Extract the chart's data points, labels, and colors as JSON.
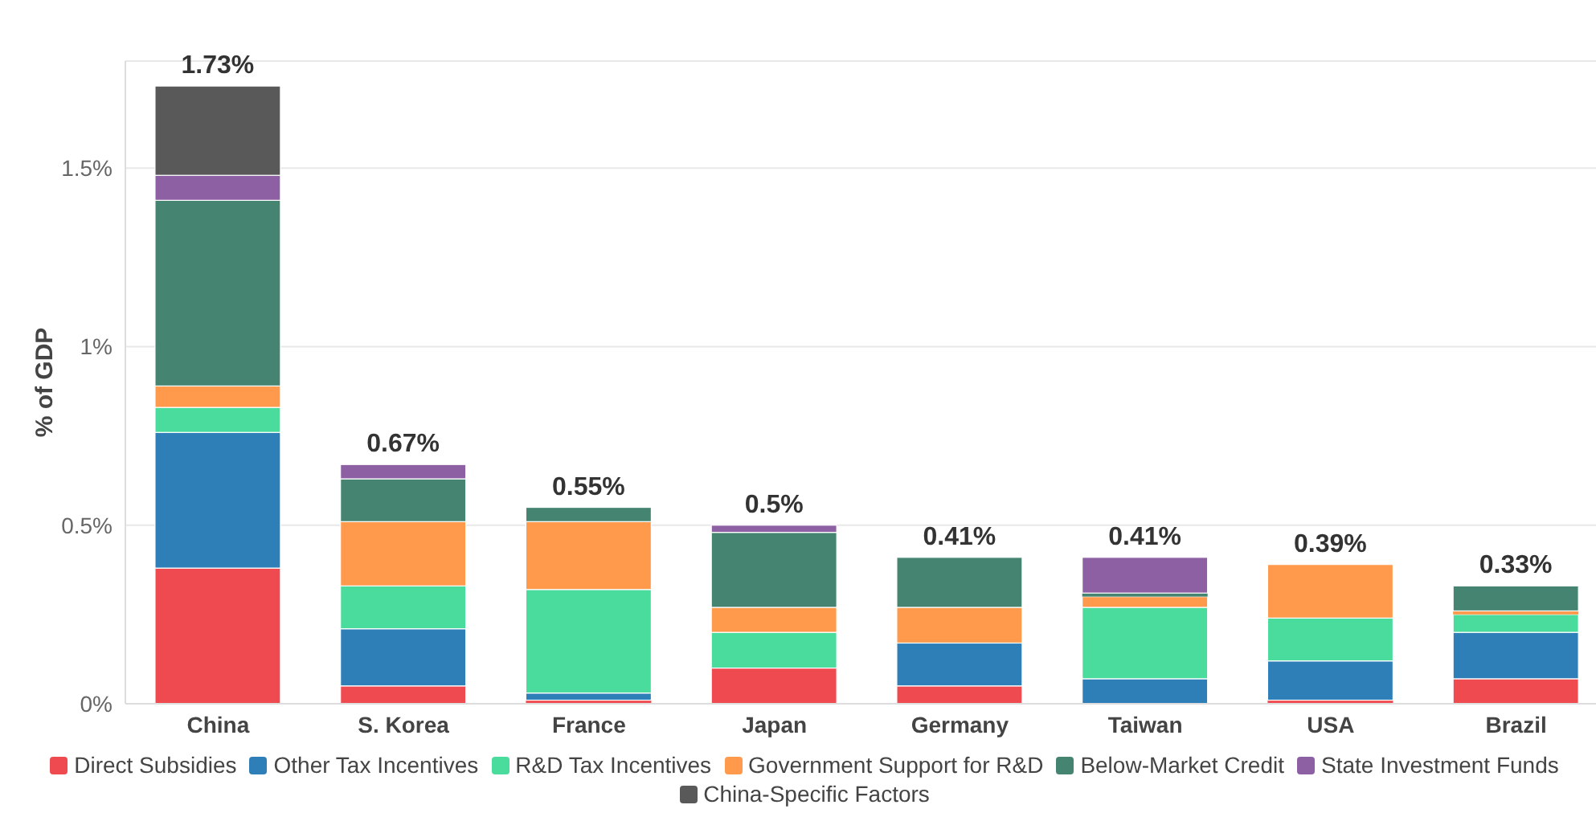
{
  "chart_data": {
    "type": "bar",
    "stacked": true,
    "ylabel": "% of GDP",
    "categories": [
      "China",
      "S. Korea",
      "France",
      "Japan",
      "Germany",
      "Taiwan",
      "USA",
      "Brazil"
    ],
    "series": [
      {
        "name": "Direct Subsidies",
        "color": "#ef4a50",
        "values": [
          0.38,
          0.05,
          0.01,
          0.1,
          0.05,
          null,
          0.01,
          0.07
        ]
      },
      {
        "name": "Other Tax Incentives",
        "color": "#2e7eb8",
        "values": [
          0.38,
          0.16,
          0.02,
          null,
          0.12,
          0.07,
          0.11,
          0.13
        ]
      },
      {
        "name": "R&D Tax Incentives",
        "color": "#4adc9c",
        "values": [
          0.07,
          0.12,
          0.29,
          0.1,
          null,
          0.2,
          0.12,
          0.05
        ]
      },
      {
        "name": "Government Support for R&D",
        "color": "#ff9a4d",
        "values": [
          0.06,
          0.18,
          0.19,
          0.07,
          0.1,
          0.03,
          0.15,
          0.01
        ]
      },
      {
        "name": "Below-Market Credit",
        "color": "#458470",
        "values": [
          0.52,
          0.12,
          0.04,
          0.21,
          0.14,
          0.01,
          null,
          0.07
        ]
      },
      {
        "name": "State Investment Funds",
        "color": "#8d5fa3",
        "values": [
          0.07,
          0.04,
          null,
          0.02,
          null,
          0.1,
          null,
          null
        ]
      },
      {
        "name": "China-Specific Factors",
        "color": "#595959",
        "values": [
          0.25,
          null,
          null,
          null,
          null,
          null,
          null,
          null
        ]
      }
    ],
    "totals": [
      "1.73%",
      "0.67%",
      "0.55%",
      "0.5%",
      "0.41%",
      "0.41%",
      "0.39%",
      "0.33%"
    ],
    "ylim": [
      0,
      1.8
    ],
    "yticks": [
      {
        "value": 0,
        "label": "0%"
      },
      {
        "value": 0.5,
        "label": "0.5%"
      },
      {
        "value": 1,
        "label": "1%"
      },
      {
        "value": 1.5,
        "label": "1.5%"
      }
    ],
    "grid": "y",
    "legend": "bottom"
  }
}
